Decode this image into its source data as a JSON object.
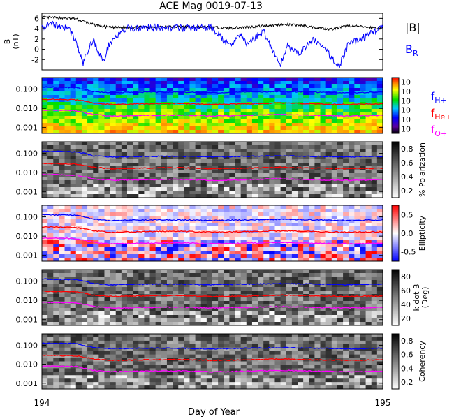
{
  "chart_data": {
    "type": "heatmap",
    "title": "ACE Mag 0019-07-13",
    "xlabel": "Day of Year",
    "xlim": [
      194,
      195
    ],
    "x_ticks": [
      "194",
      "195"
    ],
    "panels": [
      {
        "name": "magnetic-field",
        "type": "line",
        "ylabel_top": "B",
        "ylabel_unit": "(nT)",
        "ylim": [
          -4,
          7
        ],
        "y_ticks": [
          "6",
          "4",
          "2",
          "0",
          "-2"
        ],
        "legend": [
          "|B|",
          "B"
        ],
        "legend_sub": [
          "",
          "R"
        ],
        "series": [
          {
            "name": "|B|",
            "color": "#000000",
            "x": [
              194.0,
              194.06,
              194.1,
              194.15,
              194.2,
              194.3,
              194.4,
              194.5,
              194.55,
              194.6,
              194.7,
              194.75,
              194.8,
              194.85,
              194.9,
              194.95,
              195.0
            ],
            "values": [
              6.2,
              6.1,
              5.9,
              4.8,
              4.2,
              4.3,
              4.4,
              4.3,
              4.1,
              4.3,
              4.8,
              4.7,
              4.3,
              3.9,
              4.6,
              4.3,
              4.1
            ]
          },
          {
            "name": "B",
            "color": "#0000ff",
            "x": [
              194.0,
              194.04,
              194.08,
              194.1,
              194.12,
              194.15,
              194.18,
              194.2,
              194.25,
              194.3,
              194.35,
              194.4,
              194.5,
              194.55,
              194.58,
              194.6,
              194.65,
              194.7,
              194.72,
              194.75,
              194.8,
              194.85,
              194.87,
              194.9,
              194.95,
              195.0
            ],
            "values": [
              4.5,
              4.8,
              4.0,
              1.5,
              -2.8,
              2.0,
              -2.5,
              1.5,
              4.0,
              4.2,
              4.3,
              4.1,
              4.2,
              0.5,
              3.0,
              1.0,
              3.5,
              -3.2,
              1.0,
              -1.0,
              2.0,
              -1.5,
              -3.5,
              1.0,
              2.5,
              4.5
            ]
          }
        ]
      },
      {
        "name": "fraction-spectrogram",
        "ytick_labels": [
          "0.100",
          "0.010",
          "0.001"
        ],
        "colorbar_label": "",
        "colorbar_ticks": [
          "10",
          "10",
          "10",
          "10",
          "10",
          "10"
        ],
        "legend": [
          "f",
          "f",
          "f"
        ],
        "legend_sub": [
          "H+",
          "He+",
          "O+"
        ],
        "legend_colors": [
          "#0000ff",
          "#ff0000",
          "#ff00ff"
        ]
      },
      {
        "name": "polarization",
        "ytick_labels": [
          "0.100",
          "0.010",
          "0.001"
        ],
        "colorbar_label": "% Polarization",
        "colorbar_ticks": [
          "0.8",
          "0.6",
          "0.4",
          "0.2"
        ]
      },
      {
        "name": "ellipticity",
        "ytick_labels": [
          "0.100",
          "0.010",
          "0.001"
        ],
        "colorbar_label": "Ellipticity",
        "colorbar_ticks": [
          "0.5",
          "0.0",
          "-0.5"
        ]
      },
      {
        "name": "k-dot-b",
        "ytick_labels": [
          "0.100",
          "0.010",
          "0.001"
        ],
        "colorbar_label": "k dot B",
        "colorbar_label2": "(Deg)",
        "colorbar_ticks": [
          "80",
          "60",
          "40",
          "20"
        ]
      },
      {
        "name": "coherency",
        "ytick_labels": [
          "0.100",
          "0.010",
          "0.001"
        ],
        "colorbar_label": "Coherency",
        "colorbar_ticks": [
          "0.8",
          "0.6",
          "0.4",
          "0.2"
        ]
      }
    ],
    "gyrofrequency_lines": [
      {
        "name": "fH+",
        "color": "#0000ff",
        "x": [
          194.0,
          194.1,
          194.15,
          194.2,
          194.3,
          194.4,
          194.5,
          194.6,
          194.7,
          194.8,
          194.9,
          195.0
        ],
        "values": [
          0.13,
          0.12,
          0.075,
          0.065,
          0.07,
          0.07,
          0.065,
          0.07,
          0.075,
          0.07,
          0.065,
          0.07
        ]
      },
      {
        "name": "fHe+",
        "color": "#ff0000",
        "x": [
          194.0,
          194.1,
          194.15,
          194.2,
          194.3,
          194.4,
          194.5,
          194.6,
          194.7,
          194.8,
          194.9,
          195.0
        ],
        "values": [
          0.03,
          0.028,
          0.019,
          0.016,
          0.017,
          0.018,
          0.016,
          0.017,
          0.019,
          0.017,
          0.016,
          0.017
        ]
      },
      {
        "name": "fO+",
        "color": "#ff00ff",
        "x": [
          194.0,
          194.1,
          194.15,
          194.2,
          194.3,
          194.4,
          194.5,
          194.6,
          194.7,
          194.8,
          194.9,
          195.0
        ],
        "values": [
          0.008,
          0.0075,
          0.0048,
          0.004,
          0.0043,
          0.0045,
          0.004,
          0.0043,
          0.0048,
          0.0043,
          0.004,
          0.0043
        ]
      }
    ]
  }
}
